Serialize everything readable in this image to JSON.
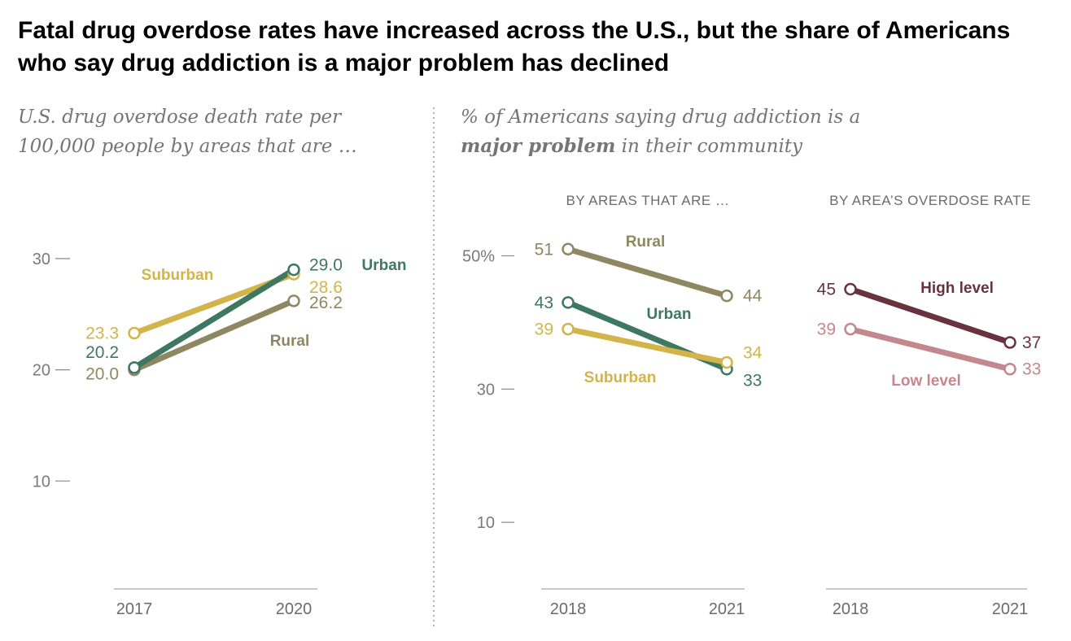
{
  "title": "Fatal drug overdose rates have increased across the U.S., but the share of Americans who say drug addiction is a major problem has declined",
  "left_subtitle": {
    "line1": "U.S. drug overdose death rate per",
    "line2": "100,000 people by areas that are …"
  },
  "right_subtitle": {
    "line1": "% of Americans saying drug addiction is a",
    "bold": "major problem",
    "rest": " in their community"
  },
  "colors": {
    "rural": "#8f8761",
    "suburban": "#d2b44a",
    "urban": "#3e7762",
    "high": "#67333f",
    "low": "#c4878e"
  },
  "chart_data": [
    {
      "type": "line",
      "title": "U.S. drug overdose death rate per 100,000 people by areas that are …",
      "x": [
        "2017",
        "2020"
      ],
      "ylim": [
        0,
        30
      ],
      "yticks": [
        "30",
        "20",
        "10"
      ],
      "series": [
        {
          "name": "Suburban",
          "values": [
            23.3,
            28.6
          ],
          "labels": [
            "23.3",
            "28.6"
          ]
        },
        {
          "name": "Rural",
          "values": [
            20.0,
            26.2
          ],
          "labels": [
            "20.0",
            "26.2"
          ]
        },
        {
          "name": "Urban",
          "values": [
            20.2,
            29.0
          ],
          "labels": [
            "20.2",
            "29.0"
          ]
        }
      ]
    },
    {
      "type": "line",
      "title": "BY AREAS THAT ARE …",
      "x": [
        "2018",
        "2021"
      ],
      "ylim": [
        0,
        50
      ],
      "yticks": [
        "50%",
        "30",
        "10"
      ],
      "series": [
        {
          "name": "Rural",
          "values": [
            51,
            44
          ],
          "labels": [
            "51",
            "44"
          ]
        },
        {
          "name": "Urban",
          "values": [
            43,
            33
          ],
          "labels": [
            "43",
            "33"
          ]
        },
        {
          "name": "Suburban",
          "values": [
            39,
            34
          ],
          "labels": [
            "39",
            "34"
          ]
        }
      ]
    },
    {
      "type": "line",
      "title": "BY AREA’S OVERDOSE RATE",
      "x": [
        "2018",
        "2021"
      ],
      "ylim": [
        0,
        50
      ],
      "series": [
        {
          "name": "High level",
          "values": [
            45,
            37
          ],
          "labels": [
            "45",
            "37"
          ]
        },
        {
          "name": "Low level",
          "values": [
            39,
            33
          ],
          "labels": [
            "39",
            "33"
          ]
        }
      ]
    }
  ]
}
